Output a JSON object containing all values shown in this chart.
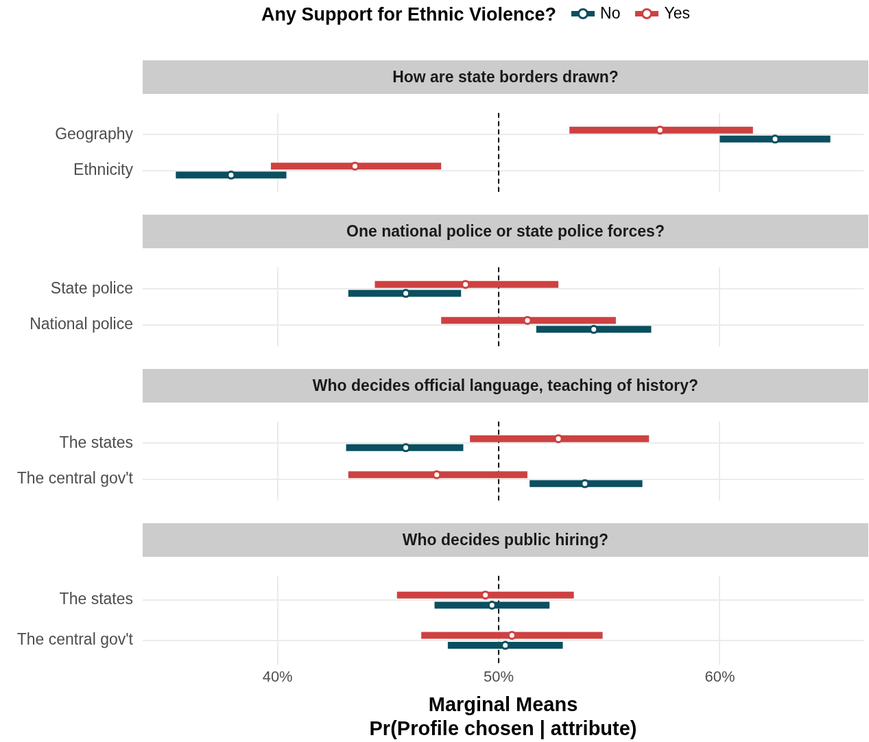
{
  "chart_data": [
    {
      "type": "scatter",
      "orientation": "horizontal",
      "title": "How are state borders drawn?",
      "legend_title": "Any Support for Ethnic Violence?",
      "legend": "top",
      "marker": "circle",
      "grid": true,
      "tick_labels": "y",
      "categories": [
        "Geography",
        "Ethnicity"
      ],
      "series": [
        {
          "name": "No",
          "color": "#0b4f60",
          "values": [
            62.5,
            37.9
          ],
          "errors": [
            [
              60.0,
              65.0
            ],
            [
              35.4,
              40.4
            ]
          ]
        },
        {
          "name": "Yes",
          "color": "#cd4241",
          "values": [
            57.3,
            43.5
          ],
          "errors": [
            [
              53.2,
              61.5
            ],
            [
              39.7,
              47.4
            ]
          ]
        }
      ],
      "xlim": [
        33.9,
        66.5
      ],
      "xticks": [
        40,
        50,
        60
      ],
      "ref_lines": [
        {
          "axis": "x",
          "value": 50,
          "line_style": "dashed",
          "color": "#000000"
        }
      ]
    },
    {
      "type": "scatter",
      "orientation": "horizontal",
      "title": "One national police or state police forces?",
      "marker": "circle",
      "grid": true,
      "tick_labels": "y",
      "categories": [
        "State police",
        "National police"
      ],
      "series": [
        {
          "color": "#0b4f60",
          "values": [
            45.8,
            54.3
          ],
          "errors": [
            [
              43.2,
              48.3
            ],
            [
              51.7,
              56.9
            ]
          ]
        },
        {
          "color": "#cd4241",
          "values": [
            48.5,
            51.3
          ],
          "errors": [
            [
              44.4,
              52.7
            ],
            [
              47.4,
              55.3
            ]
          ]
        }
      ],
      "xlim": [
        33.9,
        66.5
      ],
      "xticks": [
        40,
        50,
        60
      ],
      "ref_lines": [
        {
          "axis": "x",
          "value": 50,
          "line_style": "dashed",
          "color": "#000000"
        }
      ]
    },
    {
      "type": "scatter",
      "orientation": "horizontal",
      "title": "Who decides official language, teaching of history?",
      "marker": "circle",
      "grid": true,
      "tick_labels": "y",
      "categories": [
        "The states",
        "The central gov't"
      ],
      "series": [
        {
          "color": "#0b4f60",
          "values": [
            45.8,
            53.9
          ],
          "errors": [
            [
              43.1,
              48.4
            ],
            [
              51.4,
              56.5
            ]
          ]
        },
        {
          "color": "#cd4241",
          "values": [
            52.7,
            47.2
          ],
          "errors": [
            [
              48.7,
              56.8
            ],
            [
              43.2,
              51.3
            ]
          ]
        }
      ],
      "xlim": [
        33.9,
        66.5
      ],
      "xticks": [
        40,
        50,
        60
      ],
      "ref_lines": [
        {
          "axis": "x",
          "value": 50,
          "line_style": "dashed",
          "color": "#000000"
        }
      ]
    },
    {
      "type": "scatter",
      "orientation": "horizontal",
      "title": "Who decides public hiring?",
      "marker": "circle",
      "grid": true,
      "xlabel": "Marginal Means\nPr(Profile chosen | attribute)",
      "categories": [
        "The states",
        "The central gov't"
      ],
      "series": [
        {
          "color": "#0b4f60",
          "values": [
            49.7,
            50.3
          ],
          "errors": [
            [
              47.1,
              52.3
            ],
            [
              47.7,
              52.9
            ]
          ]
        },
        {
          "color": "#cd4241",
          "values": [
            49.4,
            50.6
          ],
          "errors": [
            [
              45.4,
              53.4
            ],
            [
              46.5,
              54.7
            ]
          ]
        }
      ],
      "xlim": [
        33.9,
        66.5
      ],
      "xticks": [
        {
          "value": 40,
          "label": "40%"
        },
        {
          "value": 50,
          "label": "50%"
        },
        {
          "value": 60,
          "label": "60%"
        }
      ],
      "ref_lines": [
        {
          "axis": "x",
          "value": 50,
          "line_style": "dashed",
          "color": "#000000"
        }
      ]
    }
  ]
}
